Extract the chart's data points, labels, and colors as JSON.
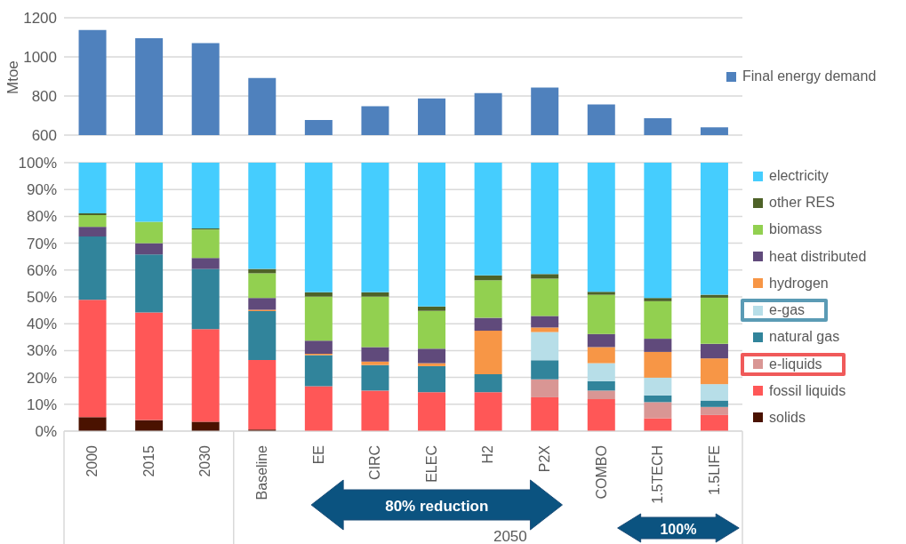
{
  "chart_data": [
    {
      "type": "bar",
      "ylabel": "Mtoe",
      "categories": [
        null,
        null,
        null,
        null,
        null,
        null,
        null,
        null,
        null,
        null,
        null,
        null
      ],
      "series": [
        {
          "name": "Final energy demand",
          "color": "#4f81bd",
          "values": [
            1138,
            1095,
            1071,
            892,
            677,
            748,
            788,
            815,
            843,
            757,
            686,
            640
          ]
        }
      ],
      "ylim": [
        600,
        1200
      ],
      "yticks": [
        600,
        800,
        1000,
        1200
      ],
      "grid": "y",
      "legend": "right",
      "tick_labels": "y"
    },
    {
      "type": "bar",
      "stacked": true,
      "categories": [
        "2000",
        "2015",
        "2030",
        "Baseline",
        "EE",
        "CIRC",
        "ELEC",
        "H2",
        "P2X",
        "COMBO",
        "1.5TECH",
        "1.5LIFE"
      ],
      "series": [
        {
          "name": "solids",
          "color": "#4a1200",
          "values": [
            5.2,
            4.1,
            3.5,
            0.6,
            0,
            0,
            0,
            0,
            0,
            0,
            0,
            0
          ]
        },
        {
          "name": "fossil liquids",
          "color": "#ff5757",
          "values": [
            43.7,
            40.1,
            34.5,
            25.9,
            16.7,
            15.1,
            14.5,
            14.5,
            12.6,
            11.9,
            4.8,
            6.0
          ]
        },
        {
          "name": "e-liquids",
          "color": "#d99694",
          "values": [
            0,
            0,
            0,
            0,
            0,
            0,
            0,
            0,
            6.7,
            3.2,
            6.0,
            3.0
          ]
        },
        {
          "name": "natural gas",
          "color": "#31849b",
          "values": [
            23.6,
            21.6,
            22.4,
            18.2,
            11.6,
            9.5,
            9.7,
            6.7,
            7.1,
            3.5,
            2.5,
            2.4
          ]
        },
        {
          "name": "e-gas",
          "color": "#b7dee8",
          "values": [
            0,
            0,
            0,
            0,
            0,
            0,
            0,
            0,
            10.5,
            6.7,
            6.6,
            6.1
          ]
        },
        {
          "name": "hydrogen",
          "color": "#f79646",
          "values": [
            0,
            0,
            0,
            0.5,
            0.5,
            1.3,
            1.1,
            16.2,
            1.7,
            6.0,
            9.6,
            9.6
          ]
        },
        {
          "name": "heat distributed",
          "color": "#604a7b",
          "values": [
            3.6,
            4.2,
            4.1,
            4.4,
            4.9,
            5.4,
            5.4,
            4.8,
            4.3,
            4.9,
            4.9,
            5.4
          ]
        },
        {
          "name": "biomass",
          "color": "#92d050",
          "values": [
            4.4,
            8.0,
            10.6,
            9.2,
            16.4,
            18.8,
            14.1,
            14.0,
            13.9,
            14.6,
            14.0,
            17.2
          ]
        },
        {
          "name": "other RES",
          "color": "#4e6228",
          "values": [
            0.6,
            0,
            0.4,
            1.6,
            1.6,
            1.6,
            1.6,
            1.8,
            1.7,
            1.1,
            1.2,
            1.1
          ]
        },
        {
          "name": "electricity",
          "color": "#45cdfe",
          "values": [
            18.9,
            22.0,
            24.5,
            39.6,
            48.3,
            48.3,
            53.6,
            42.0,
            41.5,
            48.1,
            50.4,
            49.2
          ]
        }
      ],
      "ylim": [
        0,
        100
      ],
      "yticks": [
        {
          "value": 0,
          "label": "0%"
        },
        {
          "value": 10,
          "label": "10%"
        },
        {
          "value": 20,
          "label": "20%"
        },
        {
          "value": 30,
          "label": "30%"
        },
        {
          "value": 40,
          "label": "40%"
        },
        {
          "value": 50,
          "label": "50%"
        },
        {
          "value": 60,
          "label": "60%"
        },
        {
          "value": 70,
          "label": "70%"
        },
        {
          "value": 80,
          "label": "80%"
        },
        {
          "value": 90,
          "label": "90%"
        },
        {
          "value": 100,
          "label": "100%"
        }
      ],
      "grid": "y",
      "legend": "right",
      "annotations": [
        "80% reduction",
        "100%",
        "2050"
      ]
    }
  ]
}
